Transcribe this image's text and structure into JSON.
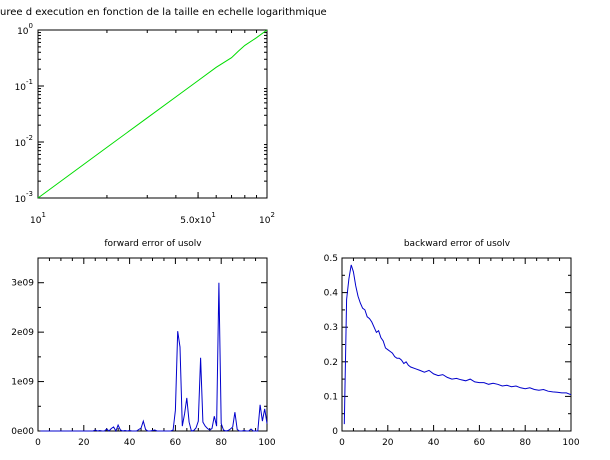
{
  "chart_data": [
    {
      "type": "line",
      "title": "uree d execution en fonction de la taille en echelle logarithmique",
      "xscale": "log",
      "yscale": "log",
      "xlim": [
        10,
        100
      ],
      "ylim": [
        0.001,
        1
      ],
      "grid": false,
      "x_ticks": [
        {
          "value": 10,
          "base": "10",
          "exp": "1"
        },
        {
          "value": 50,
          "base": "5.0x10",
          "exp": "1"
        },
        {
          "value": 100,
          "base": "10",
          "exp": "2"
        }
      ],
      "y_ticks": [
        {
          "value": 0.001,
          "base": "10",
          "exp": "-3"
        },
        {
          "value": 0.01,
          "base": "10",
          "exp": "-2"
        },
        {
          "value": 0.1,
          "base": "10",
          "exp": "-1"
        },
        {
          "value": 1,
          "base": "10",
          "exp": "0"
        }
      ],
      "series": [
        {
          "color": "#00dd00",
          "x": [
            10,
            20,
            30,
            40,
            50,
            60,
            70,
            75,
            80,
            90,
            100
          ],
          "y": [
            0.001,
            0.008,
            0.027,
            0.064,
            0.125,
            0.216,
            0.32,
            0.42,
            0.53,
            0.73,
            1.0
          ]
        }
      ]
    },
    {
      "type": "line",
      "title": "forward error of usolv",
      "xlim": [
        0,
        100
      ],
      "ylim": [
        0,
        3500000000
      ],
      "grid": false,
      "x_ticks": [
        "0",
        "20",
        "40",
        "60",
        "80",
        "100"
      ],
      "x_tick_values": [
        0,
        20,
        40,
        60,
        80,
        100
      ],
      "y_ticks": [
        "0e00",
        "1e09",
        "2e09",
        "3e09"
      ],
      "y_tick_values": [
        0,
        1000000000,
        2000000000,
        3000000000
      ],
      "series": [
        {
          "color": "#0000cc",
          "x": [
            1,
            2,
            3,
            4,
            5,
            6,
            7,
            8,
            9,
            10,
            11,
            12,
            13,
            14,
            15,
            16,
            17,
            18,
            19,
            20,
            21,
            22,
            23,
            24,
            25,
            26,
            27,
            28,
            29,
            30,
            31,
            32,
            33,
            34,
            35,
            36,
            37,
            38,
            39,
            40,
            41,
            42,
            43,
            44,
            45,
            46,
            47,
            48,
            49,
            50,
            51,
            52,
            53,
            54,
            55,
            56,
            57,
            58,
            59,
            60,
            61,
            62,
            63,
            64,
            65,
            66,
            67,
            68,
            69,
            70,
            71,
            72,
            73,
            74,
            75,
            76,
            77,
            78,
            79,
            80,
            81,
            82,
            83,
            84,
            85,
            86,
            87,
            88,
            89,
            90,
            91,
            92,
            93,
            94,
            95,
            96,
            97,
            98,
            99,
            100
          ],
          "y": [
            0,
            0,
            0,
            0,
            0,
            0,
            0,
            0,
            0,
            0,
            0,
            0,
            0,
            0,
            0,
            0,
            0,
            0,
            0,
            0,
            0,
            0,
            0,
            0,
            20000000,
            0,
            10000000,
            0,
            0,
            40000000,
            0,
            50000000,
            80000000,
            0,
            120000000,
            20000000,
            0,
            10000000,
            0,
            10000000,
            0,
            0,
            0,
            30000000,
            60000000,
            200000000,
            30000000,
            0,
            0,
            10000000,
            20000000,
            0,
            0,
            0,
            0,
            0,
            0,
            0,
            20000000,
            420000000,
            2020000000,
            1700000000,
            100000000,
            350000000,
            670000000,
            180000000,
            0,
            10000000,
            60000000,
            200000000,
            1480000000,
            180000000,
            100000000,
            50000000,
            20000000,
            50000000,
            300000000,
            100000000,
            3000000000,
            150000000,
            20000000,
            0,
            10000000,
            40000000,
            80000000,
            380000000,
            30000000,
            0,
            0,
            10000000,
            0,
            0,
            40000000,
            0,
            0,
            0,
            530000000,
            200000000,
            450000000,
            150000000
          ]
        }
      ]
    },
    {
      "type": "line",
      "title": "backward error of usolv",
      "xlim": [
        0,
        100
      ],
      "ylim": [
        0,
        0.5
      ],
      "grid": false,
      "x_ticks": [
        "0",
        "20",
        "40",
        "60",
        "80",
        "100"
      ],
      "x_tick_values": [
        0,
        20,
        40,
        60,
        80,
        100
      ],
      "y_ticks": [
        "0",
        "0.1",
        "0.2",
        "0.3",
        "0.4",
        "0.5"
      ],
      "y_tick_values": [
        0,
        0.1,
        0.2,
        0.3,
        0.4,
        0.5
      ],
      "series": [
        {
          "color": "#0000cc",
          "x": [
            1,
            2,
            3,
            4,
            5,
            6,
            7,
            8,
            9,
            10,
            11,
            12,
            13,
            14,
            15,
            16,
            17,
            18,
            19,
            20,
            21,
            22,
            23,
            24,
            25,
            26,
            27,
            28,
            29,
            30,
            32,
            34,
            36,
            38,
            40,
            42,
            44,
            46,
            48,
            50,
            52,
            54,
            56,
            58,
            60,
            62,
            64,
            66,
            68,
            70,
            72,
            74,
            76,
            78,
            80,
            82,
            84,
            86,
            88,
            90,
            92,
            94,
            96,
            98,
            100
          ],
          "y": [
            0.02,
            0.38,
            0.44,
            0.48,
            0.46,
            0.42,
            0.39,
            0.37,
            0.355,
            0.35,
            0.33,
            0.325,
            0.315,
            0.3,
            0.285,
            0.29,
            0.27,
            0.26,
            0.24,
            0.235,
            0.23,
            0.225,
            0.215,
            0.21,
            0.21,
            0.205,
            0.195,
            0.2,
            0.19,
            0.185,
            0.18,
            0.175,
            0.17,
            0.175,
            0.165,
            0.16,
            0.163,
            0.155,
            0.15,
            0.152,
            0.148,
            0.145,
            0.15,
            0.142,
            0.14,
            0.14,
            0.135,
            0.138,
            0.135,
            0.13,
            0.132,
            0.128,
            0.13,
            0.125,
            0.122,
            0.125,
            0.12,
            0.118,
            0.12,
            0.115,
            0.113,
            0.112,
            0.11,
            0.11,
            0.105
          ]
        }
      ]
    }
  ]
}
